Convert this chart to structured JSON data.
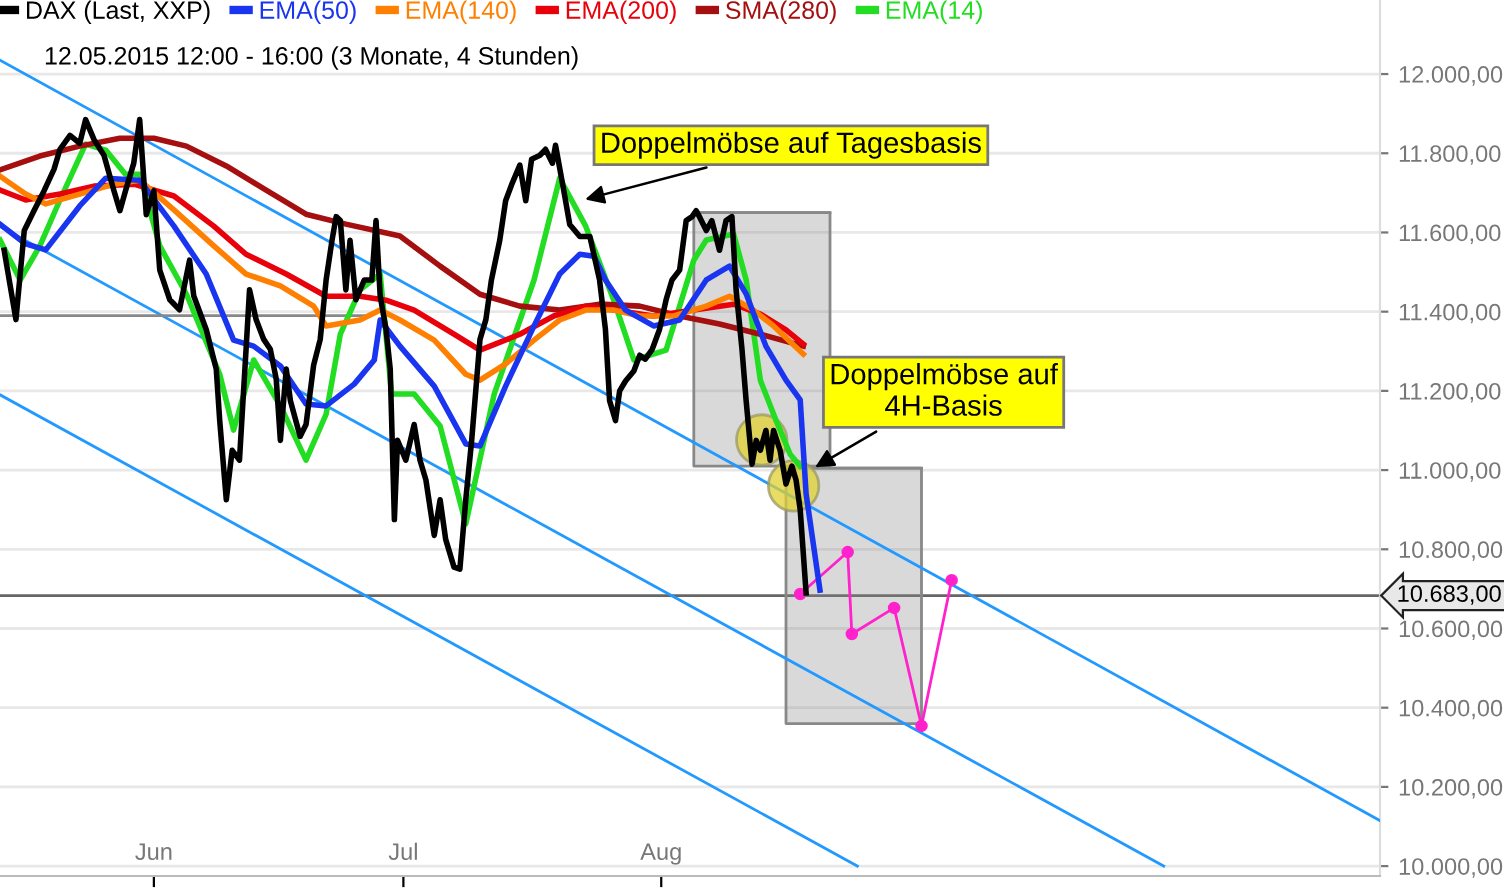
{
  "chart_data": {
    "type": "line",
    "subtitle": "12.05.2015 12:00 - 16:00 (3 Monate, 4 Stunden)",
    "xlim": [
      "2015-05-13T12:00",
      "2015-10-26T10:00"
    ],
    "xticks": [
      {
        "value": "2015-06-01",
        "label": "Jun"
      },
      {
        "value": "2015-07-01",
        "label": "Jul"
      },
      {
        "value": "2015-08-01",
        "label": "Aug"
      }
    ],
    "ylim": [
      9975,
      12187
    ],
    "yticks": [
      {
        "value": 10000,
        "label": "10.000,00"
      },
      {
        "value": 10200,
        "label": "10.200,00"
      },
      {
        "value": 10400,
        "label": "10.400,00"
      },
      {
        "value": 10600,
        "label": "10.600,00"
      },
      {
        "value": 10800,
        "label": "10.800,00"
      },
      {
        "value": 11000,
        "label": "11.000,00"
      },
      {
        "value": 11200,
        "label": "11.200,00"
      },
      {
        "value": 11400,
        "label": "11.400,00"
      },
      {
        "value": 11600,
        "label": "11.600,00"
      },
      {
        "value": 11800,
        "label": "11.800,00"
      },
      {
        "value": 12000,
        "label": "12.000,00"
      }
    ],
    "grid": "y",
    "legend": "top left",
    "line_style": "solid",
    "ref_lines": [
      {
        "axis": "y",
        "value": 10683,
        "label": "10.683,00",
        "color": "#666666"
      }
    ],
    "annotations": [
      {
        "text": "Doppelmöbse auf Tagesbasis",
        "x": "2015-07-22T05:00",
        "y": 11680
      },
      {
        "text": "Doppelmöbse auf\n4H-Basis",
        "x": "2015-08-18T22:00",
        "y": 11000
      }
    ],
    "series": [
      {
        "name": "DAX (Last, XXP)",
        "color": "#000000",
        "x": [
          "2015-05-14T00:00",
          "2015-05-15T10:00",
          "2015-05-16T10:00",
          "2015-05-17T14:00",
          "2015-05-18T19:00",
          "2015-05-20T00:00",
          "2015-05-20T17:00",
          "2015-05-21T22:00",
          "2015-05-23T02:00",
          "2015-05-23T19:00",
          "2015-05-24T19:00",
          "2015-05-26T00:00",
          "2015-05-27T05:00",
          "2015-05-27T22:00",
          "2015-05-28T14:00",
          "2015-05-29T14:00",
          "2015-05-30T07:00",
          "2015-05-31T02:00",
          "2015-06-01T00:00",
          "2015-06-01T17:00",
          "2015-06-02T22:00",
          "2015-06-04T02:00",
          "2015-06-05T07:00",
          "2015-06-05T19:00",
          "2015-06-07T07:00",
          "2015-06-08T12:00",
          "2015-06-08T22:00",
          "2015-06-09T17:00",
          "2015-06-10T10:00",
          "2015-06-11T07:00",
          "2015-06-12T02:00",
          "2015-06-12T12:00",
          "2015-06-13T07:00",
          "2015-06-14T05:00",
          "2015-06-15T00:00",
          "2015-06-15T17:00",
          "2015-06-16T05:00",
          "2015-06-16T22:00",
          "2015-06-17T10:00",
          "2015-06-18T14:00",
          "2015-06-19T07:00",
          "2015-06-20T05:00",
          "2015-06-21T00:00",
          "2015-06-21T17:00",
          "2015-06-22T10:00",
          "2015-06-22T22:00",
          "2015-06-23T10:00",
          "2015-06-24T02:00",
          "2015-06-24T14:00",
          "2015-06-25T07:00",
          "2015-06-26T07:00",
          "2015-06-27T05:00",
          "2015-06-27T17:00",
          "2015-06-28T05:00",
          "2015-06-28T22:00",
          "2015-06-29T10:00",
          "2015-06-29T22:00",
          "2015-06-30T07:00",
          "2015-07-01T07:00",
          "2015-07-02T07:00",
          "2015-07-03T00:00",
          "2015-07-03T17:00",
          "2015-07-04T17:00",
          "2015-07-05T10:00",
          "2015-07-06T02:00",
          "2015-07-07T02:00",
          "2015-07-07T19:00",
          "2015-07-08T12:00",
          "2015-07-09T05:00",
          "2015-07-10T05:00",
          "2015-07-10T22:00",
          "2015-07-11T14:00",
          "2015-07-12T14:00",
          "2015-07-13T07:00",
          "2015-07-14T00:00",
          "2015-07-15T00:00",
          "2015-07-15T17:00",
          "2015-07-16T10:00",
          "2015-07-17T10:00",
          "2015-07-18T02:00",
          "2015-07-18T22:00",
          "2015-07-19T07:00",
          "2015-07-20T07:00",
          "2015-07-21T00:00",
          "2015-07-22T05:00",
          "2015-07-23T10:00",
          "2015-07-24T14:00",
          "2015-07-25T07:00",
          "2015-07-25T19:00",
          "2015-07-26T12:00",
          "2015-07-27T00:00",
          "2015-07-27T17:00",
          "2015-07-28T17:00",
          "2015-07-29T10:00",
          "2015-07-30T02:00",
          "2015-07-30T22:00",
          "2015-07-31T19:00",
          "2015-08-01T14:00",
          "2015-08-02T07:00",
          "2015-08-03T05:00",
          "2015-08-04T00:00",
          "2015-08-04T17:00",
          "2015-08-05T05:00",
          "2015-08-05T14:00",
          "2015-08-06T10:00",
          "2015-08-07T02:00",
          "2015-08-08T00:00",
          "2015-08-08T19:00",
          "2015-08-09T12:00",
          "2015-08-10T00:00",
          "2015-08-10T17:00",
          "2015-08-11T05:00",
          "2015-08-11T22:00",
          "2015-08-12T10:00",
          "2015-08-12T22:00",
          "2015-08-13T14:00",
          "2015-08-14T02:00",
          "2015-08-14T12:00",
          "2015-08-15T07:00",
          "2015-08-16T00:00",
          "2015-08-16T17:00",
          "2015-08-17T05:00",
          "2015-08-17T17:00",
          "2015-08-18T10:00"
        ],
        "values": [
          11555,
          11380,
          11605,
          11655,
          11705,
          11760,
          11810,
          11845,
          11825,
          11885,
          11835,
          11795,
          11705,
          11655,
          11705,
          11775,
          11885,
          11645,
          11705,
          11505,
          11430,
          11405,
          11530,
          11440,
          11355,
          11255,
          11125,
          10925,
          11050,
          11025,
          11305,
          11455,
          11380,
          11330,
          11305,
          11230,
          11075,
          11255,
          11175,
          11085,
          11115,
          11265,
          11330,
          11480,
          11580,
          11640,
          11630,
          11455,
          11580,
          11430,
          11480,
          11480,
          11630,
          11440,
          11355,
          11255,
          10875,
          11075,
          11025,
          11115,
          11025,
          10975,
          10835,
          10925,
          10825,
          10755,
          10750,
          10925,
          11075,
          11330,
          11380,
          11480,
          11580,
          11680,
          11720,
          11770,
          11680,
          11785,
          11795,
          11810,
          11775,
          11820,
          11705,
          11620,
          11590,
          11590,
          11480,
          11355,
          11175,
          11125,
          11200,
          11225,
          11250,
          11290,
          11280,
          11305,
          11355,
          11430,
          11480,
          11505,
          11630,
          11640,
          11655,
          11640,
          11605,
          11630,
          11555,
          11630,
          11640,
          11455,
          11305,
          11175,
          11015,
          11075,
          11050,
          11100,
          11025,
          11100,
          11050,
          10965,
          11010,
          10975,
          10900,
          10690
        ]
      },
      {
        "name": "EMA(50)",
        "color": "#1a35f0",
        "x": [
          "2015-05-13T12:00",
          "2015-05-16T14:00",
          "2015-05-19T00:00",
          "2015-05-23T02:00",
          "2015-05-26T05:00",
          "2015-05-30T07:00",
          "2015-06-03T10:00",
          "2015-06-07T07:00",
          "2015-06-10T14:00",
          "2015-06-13T00:00",
          "2015-06-16T05:00",
          "2015-06-19T07:00",
          "2015-06-21T17:00",
          "2015-06-25T02:00",
          "2015-06-27T12:00",
          "2015-06-28T05:00",
          "2015-06-30T14:00",
          "2015-07-04T17:00",
          "2015-07-08T12:00",
          "2015-07-10T05:00",
          "2015-07-13T07:00",
          "2015-07-16T17:00",
          "2015-07-19T19:00",
          "2015-07-22T05:00",
          "2015-07-23T22:00",
          "2015-07-25T07:00",
          "2015-07-27T17:00",
          "2015-07-31T02:00",
          "2015-08-03T05:00",
          "2015-08-06T10:00",
          "2015-08-09T05:00",
          "2015-08-11T05:00",
          "2015-08-13T14:00",
          "2015-08-16T00:00",
          "2015-08-17T17:00",
          "2015-08-18T10:00",
          "2015-08-20T02:00"
        ],
        "values": [
          11621,
          11571,
          11556,
          11667,
          11737,
          11732,
          11616,
          11495,
          11328,
          11313,
          11263,
          11167,
          11162,
          11217,
          11278,
          11379,
          11313,
          11212,
          11066,
          11061,
          11212,
          11364,
          11495,
          11545,
          11540,
          11480,
          11404,
          11364,
          11379,
          11480,
          11515,
          11445,
          11313,
          11227,
          11177,
          10940,
          10697
        ]
      },
      {
        "name": "EMA(140)",
        "color": "#ff8000",
        "x": [
          "2015-05-13T12:00",
          "2015-05-16T14:00",
          "2015-05-19T00:00",
          "2015-05-23T02:00",
          "2015-05-27T05:00",
          "2015-05-30T07:00",
          "2015-06-03T10:00",
          "2015-06-08T05:00",
          "2015-06-12T02:00",
          "2015-06-16T05:00",
          "2015-06-20T05:00",
          "2015-06-21T17:00",
          "2015-06-25T19:00",
          "2015-06-28T05:00",
          "2015-06-30T14:00",
          "2015-07-04T17:00",
          "2015-07-08T12:00",
          "2015-07-10T05:00",
          "2015-07-13T07:00",
          "2015-07-16T17:00",
          "2015-07-19T19:00",
          "2015-07-22T22:00",
          "2015-07-26T07:00",
          "2015-07-29T10:00",
          "2015-08-02T12:00",
          "2015-08-06T10:00",
          "2015-08-09T05:00",
          "2015-08-12T02:00",
          "2015-08-14T12:00",
          "2015-08-18T02:00"
        ],
        "values": [
          11742,
          11697,
          11672,
          11697,
          11722,
          11732,
          11657,
          11566,
          11495,
          11465,
          11414,
          11364,
          11379,
          11404,
          11379,
          11328,
          11242,
          11227,
          11268,
          11328,
          11379,
          11404,
          11404,
          11389,
          11389,
          11414,
          11439,
          11404,
          11364,
          11293
        ]
      },
      {
        "name": "EMA(200)",
        "color": "#e8000b",
        "x": [
          "2015-05-13T12:00",
          "2015-05-16T14:00",
          "2015-05-20T17:00",
          "2015-05-24T19:00",
          "2015-05-29T14:00",
          "2015-06-03T10:00",
          "2015-06-08T05:00",
          "2015-06-12T02:00",
          "2015-06-16T22:00",
          "2015-06-21T17:00",
          "2015-06-25T19:00",
          "2015-06-28T22:00",
          "2015-07-02T07:00",
          "2015-07-07T02:00",
          "2015-07-10T05:00",
          "2015-07-15T00:00",
          "2015-07-19T02:00",
          "2015-07-22T22:00",
          "2015-07-26T07:00",
          "2015-07-31T02:00",
          "2015-08-04T22:00",
          "2015-08-09T17:00",
          "2015-08-12T22:00",
          "2015-08-16T00:00",
          "2015-08-18T02:00"
        ],
        "values": [
          11707,
          11682,
          11697,
          11717,
          11722,
          11692,
          11616,
          11545,
          11495,
          11439,
          11439,
          11429,
          11404,
          11343,
          11303,
          11343,
          11389,
          11414,
          11404,
          11389,
          11404,
          11419,
          11394,
          11354,
          11318
        ]
      },
      {
        "name": "SMA(280)",
        "color": "#a50f0f",
        "x": [
          "2015-05-13T12:00",
          "2015-05-18T07:00",
          "2015-05-23T02:00",
          "2015-05-27T22:00",
          "2015-06-01T00:00",
          "2015-06-04T22:00",
          "2015-06-09T17:00",
          "2015-06-14T12:00",
          "2015-06-19T07:00",
          "2015-06-24T02:00",
          "2015-06-30T14:00",
          "2015-07-05T10:00",
          "2015-07-10T05:00",
          "2015-07-15T00:00",
          "2015-07-19T19:00",
          "2015-07-24T14:00",
          "2015-07-29T10:00",
          "2015-08-03T05:00",
          "2015-08-08T00:00",
          "2015-08-12T22:00",
          "2015-08-18T02:00"
        ],
        "values": [
          11758,
          11793,
          11818,
          11838,
          11838,
          11818,
          11768,
          11707,
          11646,
          11621,
          11591,
          11515,
          11444,
          11414,
          11404,
          11419,
          11414,
          11389,
          11369,
          11343,
          11313
        ]
      },
      {
        "name": "EMA(14)",
        "color": "#22dd22",
        "x": [
          "2015-05-13T12:00",
          "2015-05-15T22:00",
          "2015-05-18T07:00",
          "2015-05-20T17:00",
          "2015-05-23T19:00",
          "2015-05-26T05:00",
          "2015-05-28T14:00",
          "2015-05-30T07:00",
          "2015-06-01T17:00",
          "2015-06-04T22:00",
          "2015-06-08T22:00",
          "2015-06-10T14:00",
          "2015-06-13T00:00",
          "2015-06-16T05:00",
          "2015-06-19T07:00",
          "2015-06-21T17:00",
          "2015-06-23T10:00",
          "2015-06-25T19:00",
          "2015-06-28T05:00",
          "2015-06-29T14:00",
          "2015-07-02T07:00",
          "2015-07-05T10:00",
          "2015-07-08T12:00",
          "2015-07-11T22:00",
          "2015-07-16T17:00",
          "2015-07-19T19:00",
          "2015-07-22T22:00",
          "2015-07-26T07:00",
          "2015-07-28T17:00",
          "2015-08-01T14:00",
          "2015-08-04T22:00",
          "2015-08-06T10:00",
          "2015-08-09T17:00",
          "2015-08-11T05:00",
          "2015-08-12T22:00",
          "2015-08-14T19:00",
          "2015-08-16T12:00",
          "2015-08-17T17:00"
        ],
        "values": [
          11581,
          11480,
          11566,
          11682,
          11823,
          11808,
          11747,
          11747,
          11566,
          11444,
          11242,
          11101,
          11278,
          11162,
          11025,
          11141,
          11343,
          11455,
          11495,
          11192,
          11192,
          11111,
          10864,
          11192,
          11480,
          11737,
          11616,
          11429,
          11278,
          11303,
          11530,
          11581,
          11596,
          11480,
          11227,
          11126,
          11040,
          11010
        ]
      },
      {
        "color": "#888888",
        "x": [
          "2015-08-04T22:00",
          "2015-08-21T07:00"
        ],
        "values": [
          11650,
          11650
        ],
        "lower": [
          11010,
          11010
        ],
        "upper": [
          11650,
          11650
        ]
      },
      {
        "color": "#888888",
        "x": [
          "2015-08-16T00:00",
          "2015-09-01T07:00"
        ],
        "values": [
          11005,
          11005
        ],
        "lower": [
          10360,
          10360
        ],
        "upper": [
          11005,
          11005
        ]
      },
      {
        "color": "#2299ff",
        "x": [
          "2015-05-13T12:00",
          "2015-10-26T10:00"
        ],
        "values": [
          12035,
          10115
        ]
      },
      {
        "color": "#2299ff",
        "x": [
          "2015-05-13T12:00",
          "2015-09-30T10:00"
        ],
        "values": [
          11615,
          10000
        ]
      },
      {
        "color": "#2299ff",
        "x": [
          "2015-05-13T12:00",
          "2015-08-24T14:00"
        ],
        "values": [
          11190,
          10000
        ]
      },
      {
        "color": "#888888",
        "x": [
          "2015-05-13T12:00",
          "2015-06-27T00:00"
        ],
        "values": [
          11390,
          11390
        ]
      },
      {
        "type": "scatter",
        "color": "#e0d030",
        "x": [
          "2015-08-13T02:00",
          "2015-08-16T22:00"
        ],
        "values": [
          11076,
          10960
        ]
      },
      {
        "color": "#ff22cc",
        "marker": "circle",
        "x": [
          "2015-08-17T17:00",
          "2015-08-23T10:00",
          "2015-08-23T22:00",
          "2015-08-29T00:00",
          "2015-09-01T07:00",
          "2015-09-04T22:00"
        ],
        "values": [
          10687,
          10793,
          10586,
          10652,
          10354,
          10722
        ]
      }
    ]
  }
}
